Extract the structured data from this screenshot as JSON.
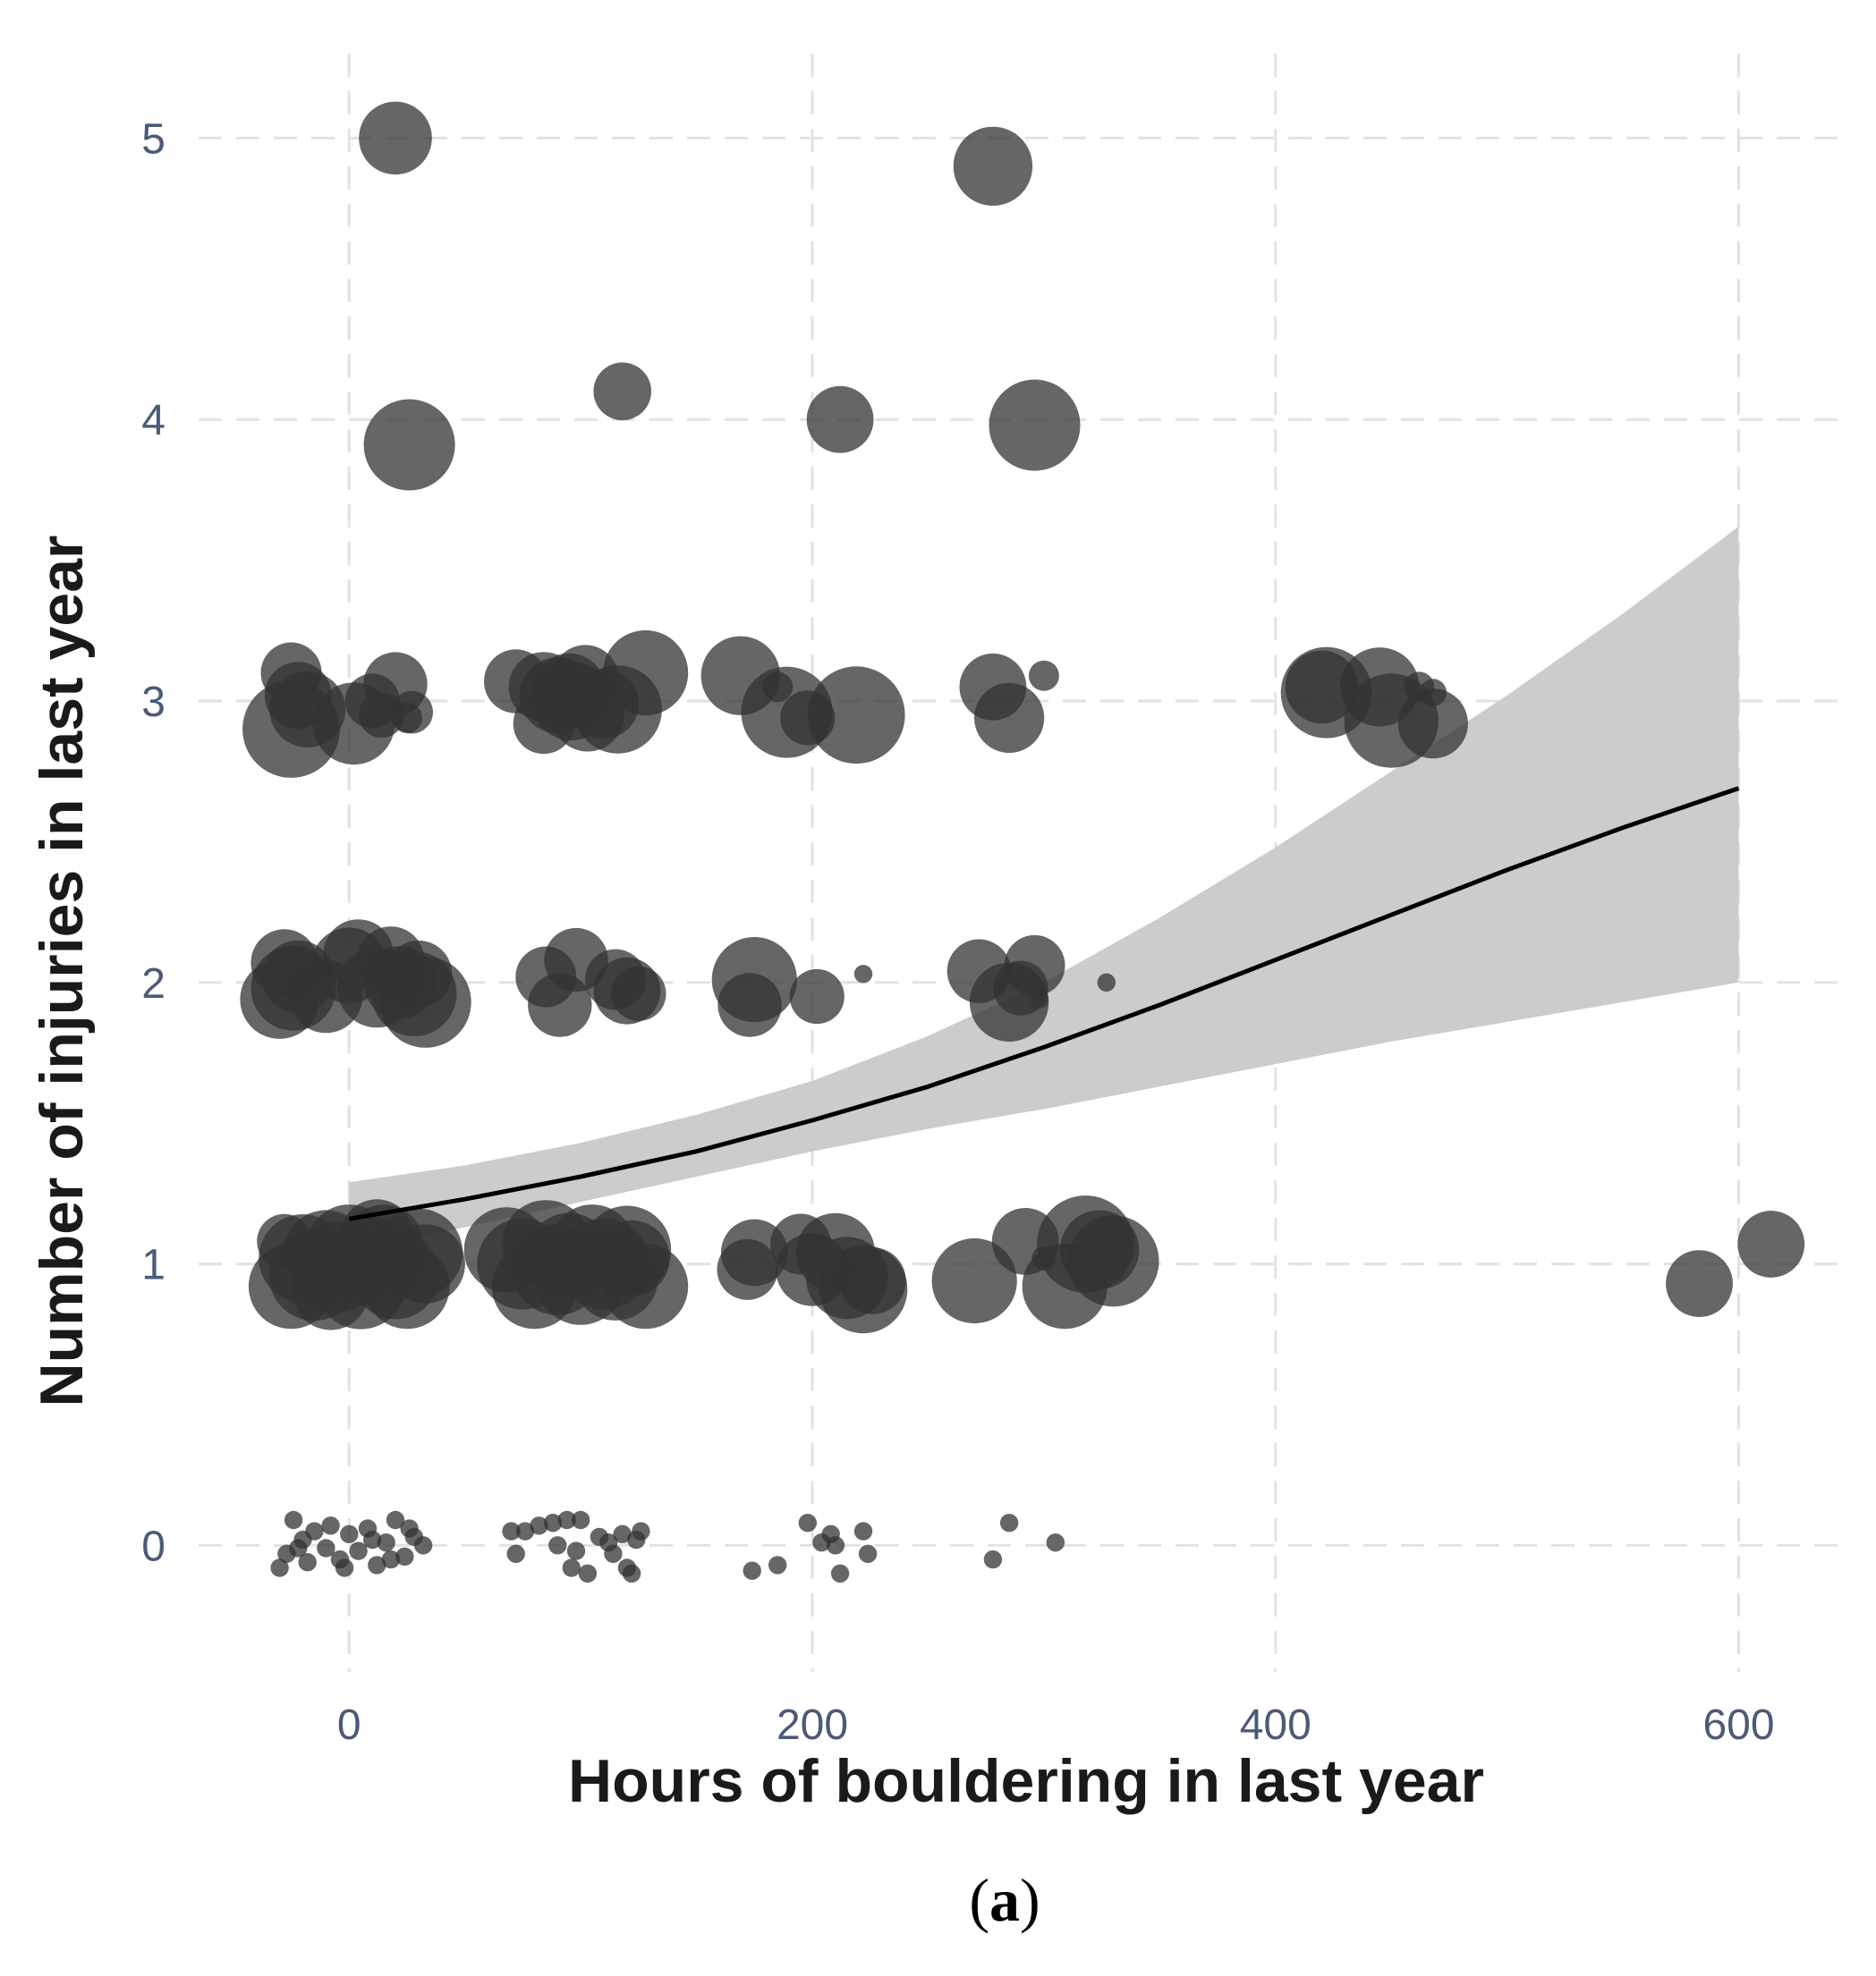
{
  "panel_label": {
    "open": "(",
    "letter": "a",
    "close": ")"
  },
  "chart_data": {
    "type": "scatter",
    "title": "",
    "xlabel": "Hours of bouldering in last year",
    "ylabel": "Number of injuries in last year",
    "xlim": [
      -65,
      645
    ],
    "ylim": [
      -0.45,
      5.3
    ],
    "x_ticks": [
      0,
      200,
      400,
      600
    ],
    "x_tick_labels": [
      "0",
      "200",
      "400",
      "600"
    ],
    "y_ticks": [
      0,
      1,
      2,
      3,
      4,
      5
    ],
    "y_tick_labels": [
      "0",
      "1",
      "2",
      "3",
      "4",
      "5"
    ],
    "grid": true,
    "grid_style": "dashed",
    "legend": "none",
    "point_color": "#333333",
    "point_opacity": 0.75,
    "band_color": "#cccccc",
    "line_color": "#000000",
    "fit": {
      "x": [
        0,
        50,
        100,
        150,
        200,
        250,
        300,
        350,
        400,
        450,
        500,
        550,
        600
      ],
      "y": [
        1.16,
        1.23,
        1.31,
        1.4,
        1.51,
        1.63,
        1.77,
        1.92,
        2.08,
        2.24,
        2.4,
        2.55,
        2.69
      ],
      "lower": [
        1.05,
        1.13,
        1.22,
        1.31,
        1.4,
        1.48,
        1.55,
        1.63,
        1.71,
        1.79,
        1.86,
        1.93,
        2.0
      ],
      "upper": [
        1.29,
        1.35,
        1.43,
        1.53,
        1.65,
        1.81,
        2.0,
        2.23,
        2.48,
        2.75,
        3.02,
        3.31,
        3.62
      ]
    },
    "points": [
      {
        "x": 20,
        "y": 5.0,
        "r": 2.4
      },
      {
        "x": 278,
        "y": 4.9,
        "r": 2.6
      },
      {
        "x": 26,
        "y": 3.91,
        "r": 3.0
      },
      {
        "x": 118,
        "y": 4.1,
        "r": 1.9
      },
      {
        "x": 212,
        "y": 4.0,
        "r": 2.2
      },
      {
        "x": 296,
        "y": 3.98,
        "r": 3.0
      },
      {
        "x": -25,
        "y": 3.1,
        "r": 2.0
      },
      {
        "x": -22,
        "y": 3.02,
        "r": 2.2
      },
      {
        "x": -18,
        "y": 2.97,
        "r": 2.5
      },
      {
        "x": -25,
        "y": 2.9,
        "r": 3.2
      },
      {
        "x": 2,
        "y": 2.92,
        "r": 2.7
      },
      {
        "x": 10,
        "y": 3.0,
        "r": 1.8
      },
      {
        "x": 14,
        "y": 2.95,
        "r": 1.5
      },
      {
        "x": 20,
        "y": 3.06,
        "r": 2.1
      },
      {
        "x": 27,
        "y": 2.96,
        "r": 1.4
      },
      {
        "x": 25,
        "y": 2.94,
        "r": 1.0
      },
      {
        "x": 72,
        "y": 3.07,
        "r": 2.1
      },
      {
        "x": 84,
        "y": 3.05,
        "r": 2.3
      },
      {
        "x": 90,
        "y": 3.02,
        "r": 2.5
      },
      {
        "x": 84,
        "y": 2.92,
        "r": 2.0
      },
      {
        "x": 96,
        "y": 3.0,
        "r": 2.6
      },
      {
        "x": 102,
        "y": 3.08,
        "r": 2.2
      },
      {
        "x": 103,
        "y": 2.95,
        "r": 2.4
      },
      {
        "x": 110,
        "y": 2.99,
        "r": 2.3
      },
      {
        "x": 116,
        "y": 2.97,
        "r": 2.9
      },
      {
        "x": 128,
        "y": 3.1,
        "r": 2.8
      },
      {
        "x": 95,
        "y": 3.04,
        "r": 2.4
      },
      {
        "x": 169,
        "y": 3.09,
        "r": 2.6
      },
      {
        "x": 185,
        "y": 3.05,
        "r": 1.0
      },
      {
        "x": 189,
        "y": 2.96,
        "r": 3.0
      },
      {
        "x": 198,
        "y": 2.94,
        "r": 1.8
      },
      {
        "x": 219,
        "y": 2.95,
        "r": 3.2
      },
      {
        "x": 278,
        "y": 3.05,
        "r": 2.2
      },
      {
        "x": 285,
        "y": 2.94,
        "r": 2.3
      },
      {
        "x": 300,
        "y": 3.09,
        "r": 1.0
      },
      {
        "x": 420,
        "y": 3.05,
        "r": 2.4
      },
      {
        "x": 422,
        "y": 3.03,
        "r": 3.0
      },
      {
        "x": 445,
        "y": 3.05,
        "r": 2.6
      },
      {
        "x": 450,
        "y": 2.93,
        "r": 3.1
      },
      {
        "x": 462,
        "y": 3.05,
        "r": 1.0
      },
      {
        "x": 468,
        "y": 3.03,
        "r": 0.9
      },
      {
        "x": 468,
        "y": 2.92,
        "r": 2.3
      },
      {
        "x": -28,
        "y": 2.07,
        "r": 2.2
      },
      {
        "x": -22,
        "y": 2.02,
        "r": 2.4
      },
      {
        "x": -30,
        "y": 1.94,
        "r": 2.6
      },
      {
        "x": -24,
        "y": 1.98,
        "r": 2.8
      },
      {
        "x": -10,
        "y": 1.95,
        "r": 2.4
      },
      {
        "x": 0,
        "y": 2.06,
        "r": 2.5
      },
      {
        "x": 4,
        "y": 2.1,
        "r": 2.3
      },
      {
        "x": 12,
        "y": 1.98,
        "r": 2.6
      },
      {
        "x": 18,
        "y": 2.08,
        "r": 2.2
      },
      {
        "x": 22,
        "y": 2.0,
        "r": 2.4
      },
      {
        "x": 30,
        "y": 2.03,
        "r": 2.2
      },
      {
        "x": 28,
        "y": 1.96,
        "r": 2.8
      },
      {
        "x": 33,
        "y": 1.93,
        "r": 3.0
      },
      {
        "x": 85,
        "y": 2.02,
        "r": 2.0
      },
      {
        "x": 91,
        "y": 1.92,
        "r": 2.1
      },
      {
        "x": 98,
        "y": 2.08,
        "r": 2.1
      },
      {
        "x": 115,
        "y": 2.01,
        "r": 2.0
      },
      {
        "x": 120,
        "y": 1.97,
        "r": 2.2
      },
      {
        "x": 125,
        "y": 1.96,
        "r": 1.8
      },
      {
        "x": 175,
        "y": 2.01,
        "r": 2.8
      },
      {
        "x": 173,
        "y": 1.92,
        "r": 2.1
      },
      {
        "x": 202,
        "y": 1.95,
        "r": 1.8
      },
      {
        "x": 222,
        "y": 2.03,
        "r": 0.6
      },
      {
        "x": 272,
        "y": 2.04,
        "r": 2.1
      },
      {
        "x": 285,
        "y": 1.93,
        "r": 2.6
      },
      {
        "x": 290,
        "y": 1.98,
        "r": 1.8
      },
      {
        "x": 296,
        "y": 2.06,
        "r": 2.0
      },
      {
        "x": 298,
        "y": 1.94,
        "r": 0.6
      },
      {
        "x": 327,
        "y": 2.0,
        "r": 0.6
      },
      {
        "x": -28,
        "y": 1.08,
        "r": 1.8
      },
      {
        "x": -25,
        "y": 0.92,
        "r": 2.8
      },
      {
        "x": -20,
        "y": 1.02,
        "r": 2.9
      },
      {
        "x": -15,
        "y": 0.96,
        "r": 3.0
      },
      {
        "x": -10,
        "y": 1.04,
        "r": 2.8
      },
      {
        "x": -5,
        "y": 0.99,
        "r": 3.0
      },
      {
        "x": 0,
        "y": 1.06,
        "r": 2.8
      },
      {
        "x": 5,
        "y": 0.93,
        "r": 3.0
      },
      {
        "x": 10,
        "y": 1.01,
        "r": 2.9
      },
      {
        "x": 15,
        "y": 1.07,
        "r": 2.6
      },
      {
        "x": 20,
        "y": 0.96,
        "r": 2.9
      },
      {
        "x": 25,
        "y": 0.92,
        "r": 2.8
      },
      {
        "x": 30,
        "y": 1.04,
        "r": 2.9
      },
      {
        "x": 33,
        "y": 1.0,
        "r": 2.6
      },
      {
        "x": -8,
        "y": 0.9,
        "r": 2.5
      },
      {
        "x": 12,
        "y": 1.1,
        "r": 2.4
      },
      {
        "x": 68,
        "y": 1.05,
        "r": 2.8
      },
      {
        "x": 75,
        "y": 1.0,
        "r": 3.0
      },
      {
        "x": 80,
        "y": 0.92,
        "r": 2.8
      },
      {
        "x": 85,
        "y": 1.07,
        "r": 2.9
      },
      {
        "x": 90,
        "y": 0.98,
        "r": 3.0
      },
      {
        "x": 95,
        "y": 1.03,
        "r": 2.8
      },
      {
        "x": 100,
        "y": 0.94,
        "r": 2.9
      },
      {
        "x": 105,
        "y": 1.06,
        "r": 2.8
      },
      {
        "x": 110,
        "y": 1.0,
        "r": 3.0
      },
      {
        "x": 115,
        "y": 0.95,
        "r": 2.8
      },
      {
        "x": 120,
        "y": 1.05,
        "r": 2.9
      },
      {
        "x": 128,
        "y": 0.92,
        "r": 2.8
      },
      {
        "x": 122,
        "y": 1.02,
        "r": 2.5
      },
      {
        "x": 175,
        "y": 1.04,
        "r": 2.2
      },
      {
        "x": 172,
        "y": 0.98,
        "r": 2.0
      },
      {
        "x": 195,
        "y": 1.07,
        "r": 2.0
      },
      {
        "x": 200,
        "y": 0.98,
        "r": 2.4
      },
      {
        "x": 210,
        "y": 1.04,
        "r": 2.6
      },
      {
        "x": 215,
        "y": 0.95,
        "r": 2.7
      },
      {
        "x": 222,
        "y": 0.91,
        "r": 2.9
      },
      {
        "x": 226,
        "y": 0.94,
        "r": 2.2
      },
      {
        "x": 270,
        "y": 0.94,
        "r": 2.8
      },
      {
        "x": 292,
        "y": 1.08,
        "r": 2.2
      },
      {
        "x": 300,
        "y": 1.02,
        "r": 0.8
      },
      {
        "x": 309,
        "y": 0.92,
        "r": 2.8
      },
      {
        "x": 318,
        "y": 1.07,
        "r": 3.2
      },
      {
        "x": 324,
        "y": 1.05,
        "r": 2.6
      },
      {
        "x": 330,
        "y": 1.01,
        "r": 3.0
      },
      {
        "x": 583,
        "y": 0.93,
        "r": 2.2
      },
      {
        "x": 614,
        "y": 1.07,
        "r": 2.2
      },
      {
        "x": -30,
        "y": -0.08,
        "r": 0.6
      },
      {
        "x": -24,
        "y": 0.09,
        "r": 0.6
      },
      {
        "x": -20,
        "y": 0.02,
        "r": 0.6
      },
      {
        "x": -27,
        "y": -0.03,
        "r": 0.6
      },
      {
        "x": -15,
        "y": 0.05,
        "r": 0.6
      },
      {
        "x": -18,
        "y": -0.06,
        "r": 0.6
      },
      {
        "x": -10,
        "y": -0.01,
        "r": 0.6
      },
      {
        "x": -8,
        "y": 0.07,
        "r": 0.6
      },
      {
        "x": -4,
        "y": -0.05,
        "r": 0.6
      },
      {
        "x": 0,
        "y": 0.04,
        "r": 0.6
      },
      {
        "x": 4,
        "y": -0.02,
        "r": 0.6
      },
      {
        "x": 8,
        "y": 0.06,
        "r": 0.6
      },
      {
        "x": 12,
        "y": -0.07,
        "r": 0.6
      },
      {
        "x": 16,
        "y": 0.01,
        "r": 0.6
      },
      {
        "x": 20,
        "y": 0.09,
        "r": 0.6
      },
      {
        "x": 24,
        "y": -0.04,
        "r": 0.6
      },
      {
        "x": 28,
        "y": 0.03,
        "r": 0.6
      },
      {
        "x": 32,
        "y": 0.0,
        "r": 0.6
      },
      {
        "x": -22,
        "y": -0.01,
        "r": 0.6
      },
      {
        "x": 10,
        "y": 0.02,
        "r": 0.6
      },
      {
        "x": 18,
        "y": -0.05,
        "r": 0.6
      },
      {
        "x": -2,
        "y": -0.08,
        "r": 0.6
      },
      {
        "x": 26,
        "y": 0.06,
        "r": 0.6
      },
      {
        "x": 70,
        "y": 0.05,
        "r": 0.6
      },
      {
        "x": 72,
        "y": -0.03,
        "r": 0.6
      },
      {
        "x": 76,
        "y": 0.05,
        "r": 0.6
      },
      {
        "x": 82,
        "y": 0.07,
        "r": 0.6
      },
      {
        "x": 88,
        "y": 0.08,
        "r": 0.6
      },
      {
        "x": 90,
        "y": 0.0,
        "r": 0.6
      },
      {
        "x": 94,
        "y": 0.09,
        "r": 0.6
      },
      {
        "x": 98,
        "y": -0.02,
        "r": 0.6
      },
      {
        "x": 100,
        "y": 0.09,
        "r": 0.6
      },
      {
        "x": 96,
        "y": -0.08,
        "r": 0.6
      },
      {
        "x": 103,
        "y": -0.1,
        "r": 0.6
      },
      {
        "x": 108,
        "y": 0.03,
        "r": 0.6
      },
      {
        "x": 112,
        "y": 0.01,
        "r": 0.6
      },
      {
        "x": 114,
        "y": -0.03,
        "r": 0.6
      },
      {
        "x": 118,
        "y": 0.04,
        "r": 0.6
      },
      {
        "x": 120,
        "y": -0.08,
        "r": 0.6
      },
      {
        "x": 122,
        "y": -0.1,
        "r": 0.6
      },
      {
        "x": 124,
        "y": 0.02,
        "r": 0.6
      },
      {
        "x": 126,
        "y": 0.05,
        "r": 0.6
      },
      {
        "x": 174,
        "y": -0.09,
        "r": 0.6
      },
      {
        "x": 185,
        "y": -0.07,
        "r": 0.6
      },
      {
        "x": 198,
        "y": 0.08,
        "r": 0.6
      },
      {
        "x": 204,
        "y": 0.01,
        "r": 0.6
      },
      {
        "x": 208,
        "y": 0.04,
        "r": 0.6
      },
      {
        "x": 210,
        "y": 0.0,
        "r": 0.6
      },
      {
        "x": 212,
        "y": -0.1,
        "r": 0.6
      },
      {
        "x": 222,
        "y": 0.05,
        "r": 0.6
      },
      {
        "x": 224,
        "y": -0.03,
        "r": 0.6
      },
      {
        "x": 278,
        "y": -0.05,
        "r": 0.6
      },
      {
        "x": 285,
        "y": 0.08,
        "r": 0.6
      },
      {
        "x": 305,
        "y": 0.01,
        "r": 0.6
      }
    ]
  }
}
